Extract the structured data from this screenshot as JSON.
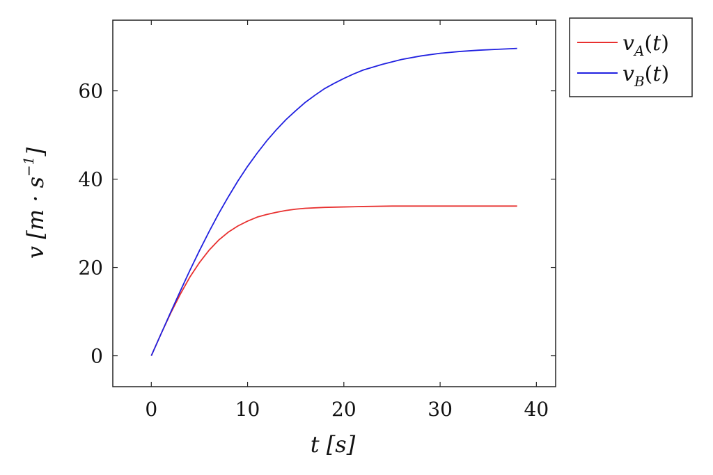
{
  "chart_data": {
    "type": "line",
    "title": "",
    "xlabel": "t [s]",
    "ylabel": "v [m · s^-1]",
    "xlim": [
      -4,
      42
    ],
    "ylim": [
      -7,
      76
    ],
    "x_ticks": [
      0,
      10,
      20,
      30,
      40
    ],
    "y_ticks": [
      0,
      20,
      40,
      60
    ],
    "grid": false,
    "legend_position": "outside-top-right",
    "series": [
      {
        "name": "v_A(t)",
        "color": "#e8302f",
        "x": [
          0,
          1,
          2,
          3,
          4,
          5,
          6,
          7,
          8,
          9,
          10,
          11,
          12,
          13,
          14,
          15,
          16,
          18,
          20,
          22,
          25,
          28,
          31,
          34,
          38
        ],
        "y": [
          0,
          4.9,
          9.6,
          13.9,
          17.8,
          21.1,
          23.9,
          26.2,
          28.0,
          29.4,
          30.5,
          31.4,
          32.0,
          32.5,
          32.9,
          33.2,
          33.4,
          33.6,
          33.7,
          33.8,
          33.9,
          33.9,
          33.9,
          33.9,
          33.9
        ]
      },
      {
        "name": "v_B(t)",
        "color": "#2020e0",
        "x": [
          0,
          1,
          2,
          3,
          4,
          5,
          6,
          7,
          8,
          9,
          10,
          11,
          12,
          13,
          14,
          15,
          16,
          17,
          18,
          19,
          20,
          21,
          22,
          24,
          26,
          28,
          30,
          32,
          34,
          36,
          38
        ],
        "y": [
          0,
          4.9,
          9.8,
          14.6,
          19.3,
          23.8,
          28.1,
          32.2,
          36.0,
          39.6,
          42.9,
          45.9,
          48.7,
          51.2,
          53.5,
          55.5,
          57.4,
          59.0,
          60.5,
          61.7,
          62.8,
          63.8,
          64.7,
          66.0,
          67.1,
          67.9,
          68.5,
          68.9,
          69.2,
          69.4,
          69.6
        ]
      }
    ]
  }
}
